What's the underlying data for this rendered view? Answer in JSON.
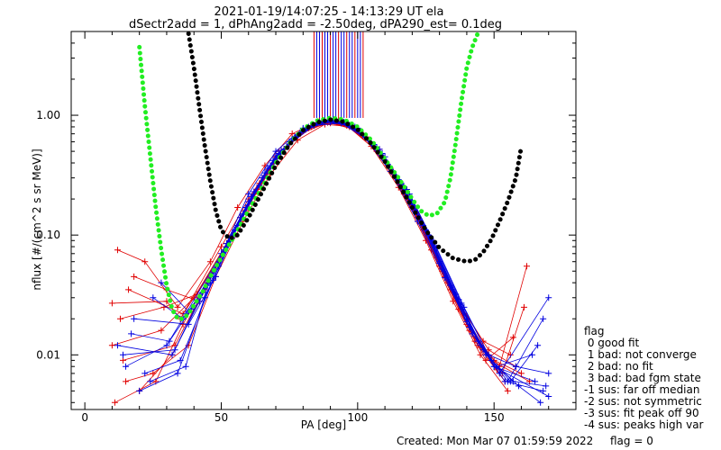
{
  "chart_data": {
    "type": "line",
    "title_line1": "2021-01-19/14:07:25 - 14:13:29 UT ela",
    "title_line2": "dSectr2add = 1, dPhAng2add = -2.50deg, dPA290_est=    0.1deg",
    "xlabel": "PA [deg]",
    "ylabel": "nflux [#/(cm^2 s sr MeV)]",
    "xlim": [
      -5,
      180
    ],
    "ylim": [
      0.0035,
      5.0
    ],
    "yscale": "log",
    "xticks": [
      0,
      50,
      100,
      150
    ],
    "xtick_labels": [
      "0",
      "50",
      "100",
      "150"
    ],
    "yticks": [
      0.01,
      0.1,
      1.0
    ],
    "ytick_labels": [
      "0.01",
      "0.10",
      "1.00"
    ],
    "grid": false,
    "legend": {
      "placement": "right-bottom",
      "title": "flag",
      "entries": [
        " 0 good fit",
        " 1 bad: not converge",
        " 2 bad: no fit",
        " 3 bad: bad fgm state",
        "-1 sus: far off median",
        "-2 sus: not symmetric",
        "-3 sus: fit peak off 90",
        "-4 sus: peaks high var"
      ]
    },
    "footer": {
      "created": "Created: Mon Mar 07 01:59:59 2022",
      "flag": "flag = 0"
    },
    "colors": {
      "red_series": "#e00000",
      "blue_series": "#0000e0",
      "green_fit": "#22ee22",
      "black_fit": "#000000"
    },
    "fit_curves": [
      {
        "color": "green",
        "x": [
          20,
          22,
          24,
          26,
          28,
          30,
          32,
          34,
          36,
          38,
          40,
          43,
          46,
          50,
          55,
          60,
          65,
          70,
          75,
          80,
          85,
          90,
          95,
          100,
          105,
          110,
          115,
          120,
          123,
          126,
          129,
          132,
          134,
          136,
          138,
          140,
          142,
          144
        ],
        "y": [
          3.7,
          1.2,
          0.45,
          0.17,
          0.075,
          0.038,
          0.024,
          0.02,
          0.02,
          0.022,
          0.026,
          0.033,
          0.045,
          0.065,
          0.1,
          0.16,
          0.25,
          0.4,
          0.58,
          0.77,
          0.9,
          0.95,
          0.92,
          0.8,
          0.62,
          0.43,
          0.3,
          0.2,
          0.16,
          0.145,
          0.15,
          0.19,
          0.3,
          0.6,
          1.3,
          2.5,
          3.7,
          4.8
        ]
      },
      {
        "color": "black",
        "x": [
          38,
          40,
          42,
          44,
          46,
          48,
          50,
          53,
          56,
          60,
          65,
          70,
          75,
          80,
          85,
          90,
          95,
          100,
          105,
          110,
          115,
          120,
          125,
          130,
          135,
          140,
          143,
          146,
          149,
          152,
          155,
          158,
          160
        ],
        "y": [
          4.8,
          2.5,
          1.15,
          0.55,
          0.28,
          0.16,
          0.11,
          0.093,
          0.1,
          0.14,
          0.23,
          0.38,
          0.57,
          0.75,
          0.87,
          0.92,
          0.88,
          0.76,
          0.58,
          0.41,
          0.27,
          0.17,
          0.11,
          0.078,
          0.064,
          0.06,
          0.062,
          0.072,
          0.092,
          0.13,
          0.19,
          0.3,
          0.55
        ]
      }
    ],
    "data_traces": [
      {
        "color": "red",
        "x": [
          10,
          30,
          35,
          50,
          60,
          70,
          80,
          90,
          100,
          110,
          120,
          130,
          140,
          150,
          160
        ],
        "y": [
          0.027,
          0.028,
          0.02,
          0.08,
          0.2,
          0.45,
          0.75,
          0.86,
          0.75,
          0.42,
          0.17,
          0.055,
          0.018,
          0.009,
          0.007
        ]
      },
      {
        "color": "red",
        "x": [
          15,
          25,
          38,
          48,
          58,
          68,
          78,
          88,
          98,
          108,
          118,
          128,
          138,
          148,
          158
        ],
        "y": [
          0.006,
          0.007,
          0.012,
          0.045,
          0.13,
          0.32,
          0.62,
          0.84,
          0.8,
          0.52,
          0.24,
          0.08,
          0.025,
          0.011,
          0.008
        ]
      },
      {
        "color": "red",
        "x": [
          12,
          22,
          34,
          46,
          56,
          66,
          76,
          86,
          96,
          106,
          116,
          126,
          136,
          146,
          156
        ],
        "y": [
          0.075,
          0.06,
          0.025,
          0.06,
          0.17,
          0.38,
          0.7,
          0.9,
          0.82,
          0.55,
          0.26,
          0.09,
          0.03,
          0.013,
          0.01
        ]
      },
      {
        "color": "red",
        "x": [
          20,
          32,
          44,
          54,
          64,
          74,
          84,
          94,
          104,
          114,
          124,
          134,
          144,
          154
        ],
        "y": [
          0.005,
          0.01,
          0.035,
          0.1,
          0.27,
          0.55,
          0.82,
          0.88,
          0.62,
          0.3,
          0.11,
          0.035,
          0.012,
          0.006
        ]
      },
      {
        "color": "red",
        "x": [
          10,
          28,
          40,
          52,
          62,
          72,
          82,
          92,
          102,
          112,
          122,
          132,
          142,
          152,
          162
        ],
        "y": [
          0.012,
          0.016,
          0.03,
          0.085,
          0.22,
          0.5,
          0.78,
          0.92,
          0.7,
          0.36,
          0.14,
          0.045,
          0.015,
          0.008,
          0.055
        ]
      },
      {
        "color": "red",
        "x": [
          18,
          30,
          42,
          55,
          65,
          75,
          85,
          95,
          105,
          115,
          125,
          135,
          145,
          155
        ],
        "y": [
          0.045,
          0.035,
          0.028,
          0.11,
          0.3,
          0.6,
          0.85,
          0.86,
          0.55,
          0.25,
          0.09,
          0.028,
          0.01,
          0.005
        ]
      },
      {
        "color": "red",
        "x": [
          11,
          26,
          36,
          47,
          59,
          69,
          79,
          89,
          99,
          109,
          119,
          129,
          139,
          149,
          163
        ],
        "y": [
          0.004,
          0.006,
          0.018,
          0.05,
          0.16,
          0.4,
          0.7,
          0.87,
          0.78,
          0.46,
          0.2,
          0.065,
          0.022,
          0.009,
          0.006
        ]
      },
      {
        "color": "red",
        "x": [
          14,
          33,
          45,
          57,
          67,
          77,
          87,
          97,
          107,
          117,
          127,
          137,
          147,
          157
        ],
        "y": [
          0.009,
          0.012,
          0.04,
          0.14,
          0.35,
          0.66,
          0.88,
          0.8,
          0.5,
          0.22,
          0.075,
          0.024,
          0.009,
          0.014
        ]
      },
      {
        "color": "red",
        "x": [
          16,
          36,
          49,
          61,
          71,
          81,
          91,
          101,
          111,
          121,
          131,
          141,
          151
        ],
        "y": [
          0.035,
          0.022,
          0.06,
          0.19,
          0.46,
          0.76,
          0.9,
          0.72,
          0.38,
          0.16,
          0.05,
          0.016,
          0.0075
        ]
      },
      {
        "color": "red",
        "x": [
          13,
          29,
          41,
          53,
          63,
          73,
          83,
          93,
          103,
          113,
          123,
          133,
          143,
          153,
          161
        ],
        "y": [
          0.02,
          0.025,
          0.032,
          0.09,
          0.24,
          0.52,
          0.8,
          0.9,
          0.66,
          0.33,
          0.13,
          0.04,
          0.013,
          0.007,
          0.025
        ]
      },
      {
        "color": "blue",
        "x": [
          15,
          30,
          37,
          50,
          60,
          70,
          80,
          90,
          100,
          110,
          120,
          130,
          140,
          150,
          165
        ],
        "y": [
          0.008,
          0.012,
          0.022,
          0.07,
          0.19,
          0.46,
          0.76,
          0.88,
          0.78,
          0.45,
          0.19,
          0.06,
          0.02,
          0.008,
          0.006
        ]
      },
      {
        "color": "blue",
        "x": [
          20,
          34,
          44,
          54,
          64,
          74,
          84,
          94,
          104,
          114,
          124,
          134,
          144,
          154,
          168
        ],
        "y": [
          0.005,
          0.007,
          0.03,
          0.095,
          0.26,
          0.55,
          0.82,
          0.86,
          0.62,
          0.31,
          0.12,
          0.038,
          0.013,
          0.006,
          0.005
        ]
      },
      {
        "color": "blue",
        "x": [
          18,
          38,
          48,
          58,
          68,
          78,
          88,
          98,
          108,
          118,
          128,
          138,
          148,
          158,
          170
        ],
        "y": [
          0.02,
          0.018,
          0.045,
          0.15,
          0.38,
          0.68,
          0.9,
          0.82,
          0.52,
          0.24,
          0.085,
          0.027,
          0.01,
          0.008,
          0.007
        ]
      },
      {
        "color": "blue",
        "x": [
          25,
          36,
          46,
          56,
          66,
          76,
          86,
          96,
          106,
          116,
          126,
          136,
          146,
          156,
          166
        ],
        "y": [
          0.03,
          0.02,
          0.04,
          0.12,
          0.33,
          0.63,
          0.88,
          0.85,
          0.57,
          0.27,
          0.1,
          0.032,
          0.011,
          0.006,
          0.012
        ]
      },
      {
        "color": "blue",
        "x": [
          12,
          32,
          42,
          52,
          62,
          72,
          82,
          92,
          102,
          112,
          122,
          132,
          142,
          152,
          170
        ],
        "y": [
          0.012,
          0.01,
          0.028,
          0.085,
          0.23,
          0.51,
          0.8,
          0.92,
          0.68,
          0.34,
          0.13,
          0.044,
          0.015,
          0.007,
          0.03
        ]
      },
      {
        "color": "blue",
        "x": [
          22,
          35,
          47,
          57,
          67,
          77,
          87,
          97,
          107,
          117,
          127,
          137,
          147,
          157,
          169
        ],
        "y": [
          0.007,
          0.009,
          0.042,
          0.14,
          0.36,
          0.66,
          0.89,
          0.83,
          0.54,
          0.25,
          0.092,
          0.029,
          0.01,
          0.006,
          0.0055
        ]
      },
      {
        "color": "blue",
        "x": [
          17,
          31,
          39,
          51,
          61,
          71,
          81,
          91,
          101,
          111,
          121,
          131,
          141,
          151,
          164
        ],
        "y": [
          0.015,
          0.013,
          0.024,
          0.075,
          0.21,
          0.48,
          0.78,
          0.93,
          0.74,
          0.39,
          0.16,
          0.052,
          0.017,
          0.008,
          0.01
        ]
      },
      {
        "color": "blue",
        "x": [
          28,
          38,
          49,
          59,
          69,
          79,
          89,
          99,
          109,
          119,
          129,
          139,
          149,
          159,
          167
        ],
        "y": [
          0.04,
          0.023,
          0.055,
          0.17,
          0.42,
          0.72,
          0.91,
          0.8,
          0.48,
          0.22,
          0.078,
          0.025,
          0.009,
          0.0055,
          0.004
        ]
      },
      {
        "color": "blue",
        "x": [
          14,
          33,
          43,
          55,
          65,
          75,
          85,
          95,
          105,
          115,
          125,
          135,
          145,
          155,
          168
        ],
        "y": [
          0.01,
          0.011,
          0.033,
          0.11,
          0.3,
          0.6,
          0.86,
          0.88,
          0.6,
          0.29,
          0.11,
          0.035,
          0.012,
          0.006,
          0.02
        ]
      },
      {
        "color": "blue",
        "x": [
          24,
          37,
          45,
          60,
          70,
          80,
          90,
          100,
          110,
          120,
          130,
          140,
          150,
          170
        ],
        "y": [
          0.006,
          0.008,
          0.038,
          0.22,
          0.5,
          0.78,
          0.92,
          0.76,
          0.42,
          0.18,
          0.058,
          0.019,
          0.008,
          0.0045
        ]
      }
    ],
    "vertical_spikes_x": [
      84,
      85,
      86,
      87,
      88,
      89,
      90,
      91,
      92,
      93,
      94,
      95,
      96,
      97,
      98,
      99,
      100,
      101,
      102
    ]
  }
}
